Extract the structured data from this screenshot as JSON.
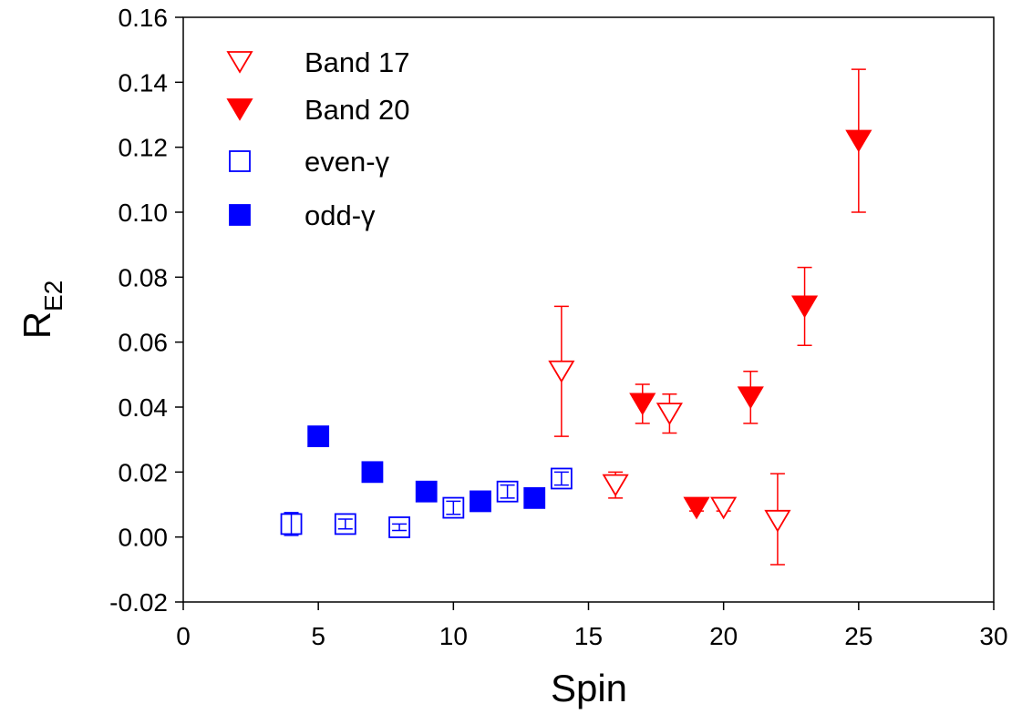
{
  "chart_data": {
    "type": "scatter",
    "xlabel": "Spin",
    "ylabel": "R",
    "ylabel_subscript": "E2",
    "xlim": [
      0,
      30
    ],
    "ylim": [
      -0.02,
      0.16
    ],
    "x_ticks": [
      "0",
      "5",
      "10",
      "15",
      "20",
      "25",
      "30"
    ],
    "y_ticks": [
      "-0.02",
      "0.00",
      "0.02",
      "0.04",
      "0.06",
      "0.08",
      "0.10",
      "0.12",
      "0.14",
      "0.16"
    ],
    "grid": false,
    "legend_position": "top-left",
    "series": [
      {
        "name": "Band 17",
        "marker": "triangle-down-open",
        "color": "#ff0000",
        "points": [
          {
            "x": 14,
            "y": 0.051,
            "err_low": 0.031,
            "err_high": 0.071
          },
          {
            "x": 16,
            "y": 0.016,
            "err_low": 0.012,
            "err_high": 0.02
          },
          {
            "x": 18,
            "y": 0.038,
            "err_low": 0.032,
            "err_high": 0.044
          },
          {
            "x": 20,
            "y": 0.009,
            "err_low": 0.008,
            "err_high": 0.01
          },
          {
            "x": 22,
            "y": 0.005,
            "err_low": -0.0085,
            "err_high": 0.0195
          }
        ]
      },
      {
        "name": "Band 20",
        "marker": "triangle-down-filled",
        "color": "#ff0000",
        "points": [
          {
            "x": 17,
            "y": 0.041,
            "err_low": 0.035,
            "err_high": 0.047
          },
          {
            "x": 19,
            "y": 0.009,
            "err_low": 0.008,
            "err_high": 0.01
          },
          {
            "x": 21,
            "y": 0.043,
            "err_low": 0.035,
            "err_high": 0.051
          },
          {
            "x": 23,
            "y": 0.071,
            "err_low": 0.059,
            "err_high": 0.083
          },
          {
            "x": 25,
            "y": 0.122,
            "err_low": 0.1,
            "err_high": 0.144
          }
        ]
      },
      {
        "name": "even-γ",
        "marker": "square-open",
        "color": "#0000ff",
        "points": [
          {
            "x": 4,
            "y": 0.004,
            "err_low": 0.0005,
            "err_high": 0.0075
          },
          {
            "x": 6,
            "y": 0.004,
            "err_low": 0.0025,
            "err_high": 0.0055
          },
          {
            "x": 8,
            "y": 0.003,
            "err_low": 0.002,
            "err_high": 0.004
          },
          {
            "x": 10,
            "y": 0.009,
            "err_low": 0.007,
            "err_high": 0.011
          },
          {
            "x": 12,
            "y": 0.014,
            "err_low": 0.012,
            "err_high": 0.016
          },
          {
            "x": 14,
            "y": 0.018,
            "err_low": 0.016,
            "err_high": 0.02
          }
        ]
      },
      {
        "name": "odd-γ",
        "marker": "square-filled",
        "color": "#0000ff",
        "points": [
          {
            "x": 5,
            "y": 0.031,
            "err_low": 0.029,
            "err_high": 0.033
          },
          {
            "x": 7,
            "y": 0.02,
            "err_low": 0.019,
            "err_high": 0.021
          },
          {
            "x": 9,
            "y": 0.014,
            "err_low": 0.013,
            "err_high": 0.015
          },
          {
            "x": 11,
            "y": 0.011,
            "err_low": 0.01,
            "err_high": 0.012
          },
          {
            "x": 13,
            "y": 0.012,
            "err_low": 0.011,
            "err_high": 0.013
          }
        ]
      }
    ]
  }
}
